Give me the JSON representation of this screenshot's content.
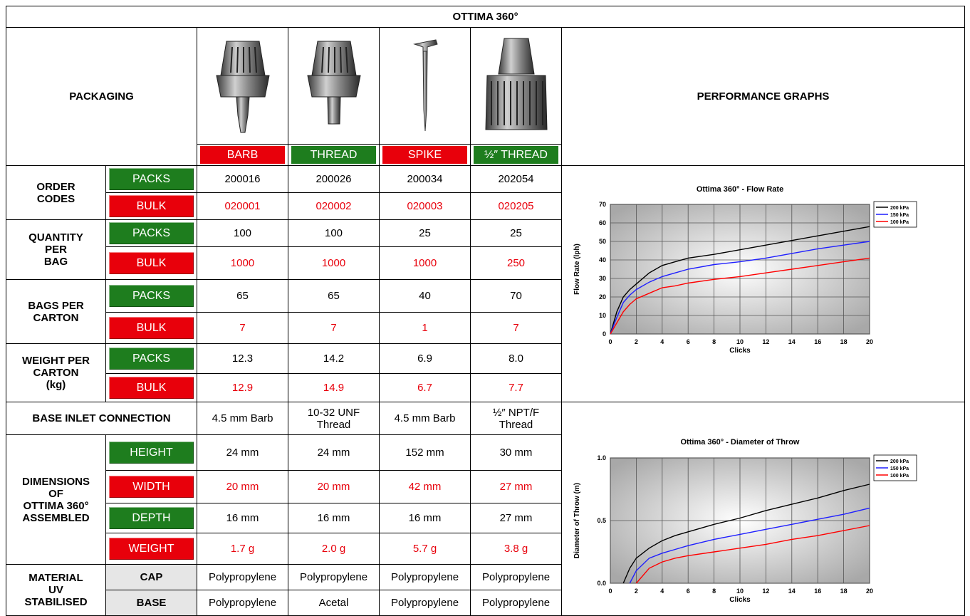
{
  "table": {
    "title": "OTTIMA 360°",
    "packaging": "PACKAGING",
    "performance_graphs": "PERFORMANCE GRAPHS",
    "products": [
      "BARB",
      "THREAD",
      "SPIKE",
      "½″ THREAD"
    ],
    "product_colors": [
      "#e8000b",
      "#1e7d1e",
      "#e8000b",
      "#1e7d1e"
    ],
    "groups": [
      {
        "label": "ORDER\nCODES",
        "rows": [
          {
            "kind": "PACKS",
            "color": "#1e7d1e",
            "values": [
              "200016",
              "200026",
              "200034",
              "202054"
            ]
          },
          {
            "kind": "BULK",
            "color": "#e8000b",
            "value_color": "#e8000b",
            "values": [
              "020001",
              "020002",
              "020003",
              "020205"
            ]
          }
        ]
      },
      {
        "label": "QUANTITY\nPER\nBAG",
        "rows": [
          {
            "kind": "PACKS",
            "color": "#1e7d1e",
            "values": [
              "100",
              "100",
              "25",
              "25"
            ]
          },
          {
            "kind": "BULK",
            "color": "#e8000b",
            "value_color": "#e8000b",
            "values": [
              "1000",
              "1000",
              "1000",
              "250"
            ]
          }
        ]
      },
      {
        "label": "BAGS PER\nCARTON",
        "rows": [
          {
            "kind": "PACKS",
            "color": "#1e7d1e",
            "values": [
              "65",
              "65",
              "40",
              "70"
            ]
          },
          {
            "kind": "BULK",
            "color": "#e8000b",
            "value_color": "#e8000b",
            "values": [
              "7",
              "7",
              "1",
              "7"
            ]
          }
        ]
      },
      {
        "label": "WEIGHT PER\nCARTON\n(kg)",
        "rows": [
          {
            "kind": "PACKS",
            "color": "#1e7d1e",
            "values": [
              "12.3",
              "14.2",
              "6.9",
              "8.0"
            ]
          },
          {
            "kind": "BULK",
            "color": "#e8000b",
            "value_color": "#e8000b",
            "values": [
              "12.9",
              "14.9",
              "6.7",
              "7.7"
            ]
          }
        ]
      },
      {
        "label": "BASE INLET CONNECTION",
        "values": [
          "4.5 mm Barb",
          "10-32 UNF\nThread",
          "4.5 mm Barb",
          "½″ NPT/F\nThread"
        ]
      },
      {
        "label": "DIMENSIONS\nOF\nOTTIMA 360°\nASSEMBLED",
        "rows": [
          {
            "kind": "HEIGHT",
            "color": "#1e7d1e",
            "values": [
              "24 mm",
              "24 mm",
              "152 mm",
              "30 mm"
            ]
          },
          {
            "kind": "WIDTH",
            "color": "#e8000b",
            "value_color": "#e8000b",
            "values": [
              "20 mm",
              "20 mm",
              "42 mm",
              "27 mm"
            ]
          },
          {
            "kind": "DEPTH",
            "color": "#1e7d1e",
            "values": [
              "16 mm",
              "16 mm",
              "16 mm",
              "27 mm"
            ]
          },
          {
            "kind": "WEIGHT",
            "color": "#e8000b",
            "value_color": "#e8000b",
            "values": [
              "1.7 g",
              "2.0 g",
              "5.7 g",
              "3.8 g"
            ]
          }
        ]
      },
      {
        "label": "MATERIAL\nUV\nSTABILISED",
        "rows": [
          {
            "kind": "CAP",
            "values": [
              "Polypropylene",
              "Polypropylene",
              "Polypropylene",
              "Polypropylene"
            ]
          },
          {
            "kind": "BASE",
            "values": [
              "Polypropylene",
              "Acetal",
              "Polypropylene",
              "Polypropylene"
            ]
          }
        ]
      }
    ]
  },
  "chart_data": [
    {
      "type": "line",
      "title": "Ottima 360° - Flow Rate",
      "x_label": "Clicks",
      "y_label": "Flow Rate  (lph)",
      "x": [
        0,
        0.5,
        1,
        1.5,
        2,
        3,
        4,
        5,
        6,
        8,
        10,
        12,
        14,
        16,
        18,
        20
      ],
      "series": [
        {
          "name": "200 kPa",
          "color": "#000000",
          "values": [
            0,
            12,
            20,
            24,
            27,
            33,
            37,
            39,
            41,
            43,
            45.5,
            48,
            50.5,
            53,
            55.5,
            58
          ]
        },
        {
          "name": "150 kPa",
          "color": "#1f1fff",
          "values": [
            0,
            9,
            17,
            21,
            24,
            28,
            31,
            33,
            35,
            37.5,
            39,
            41,
            43.5,
            46,
            48,
            50
          ]
        },
        {
          "name": "100 kPa",
          "color": "#ff0000",
          "values": [
            0,
            6,
            12,
            16,
            19,
            22,
            25,
            26,
            27.5,
            29.5,
            31,
            33,
            35,
            37,
            39,
            41
          ]
        }
      ],
      "xlim": [
        0,
        20
      ],
      "xticks": [
        0,
        2,
        4,
        6,
        8,
        10,
        12,
        14,
        16,
        18,
        20
      ],
      "ylim": [
        0,
        70
      ],
      "yticks": [
        0,
        10,
        20,
        30,
        40,
        50,
        60,
        70
      ],
      "grid": true,
      "legend": "right"
    },
    {
      "type": "line",
      "title": "Ottima 360° - Diameter of Throw",
      "x_label": "Clicks",
      "y_label": "Diameter of Throw  (m)",
      "x": [
        1,
        1.5,
        2,
        3,
        4,
        5,
        6,
        8,
        10,
        12,
        14,
        16,
        18,
        20
      ],
      "series": [
        {
          "name": "200 kPa",
          "color": "#000000",
          "values": [
            0,
            0.12,
            0.2,
            0.28,
            0.34,
            0.38,
            0.41,
            0.47,
            0.52,
            0.58,
            0.63,
            0.68,
            0.74,
            0.79
          ]
        },
        {
          "name": "150 kPa",
          "color": "#1f1fff",
          "values": [
            null,
            0,
            0.1,
            0.2,
            0.24,
            0.27,
            0.3,
            0.35,
            0.39,
            0.43,
            0.47,
            0.51,
            0.55,
            0.6
          ]
        },
        {
          "name": "100 kPa",
          "color": "#ff0000",
          "values": [
            null,
            null,
            0,
            0.12,
            0.17,
            0.2,
            0.22,
            0.25,
            0.28,
            0.31,
            0.35,
            0.38,
            0.42,
            0.46
          ]
        }
      ],
      "xlim": [
        0,
        20
      ],
      "xticks": [
        0,
        2,
        4,
        6,
        8,
        10,
        12,
        14,
        16,
        18,
        20
      ],
      "ylim": [
        0,
        1
      ],
      "yticks": [
        {
          "value": 0,
          "label": "0.0"
        },
        0.5,
        {
          "value": 1,
          "label": "1.0"
        }
      ],
      "grid": true,
      "legend": "right"
    }
  ]
}
